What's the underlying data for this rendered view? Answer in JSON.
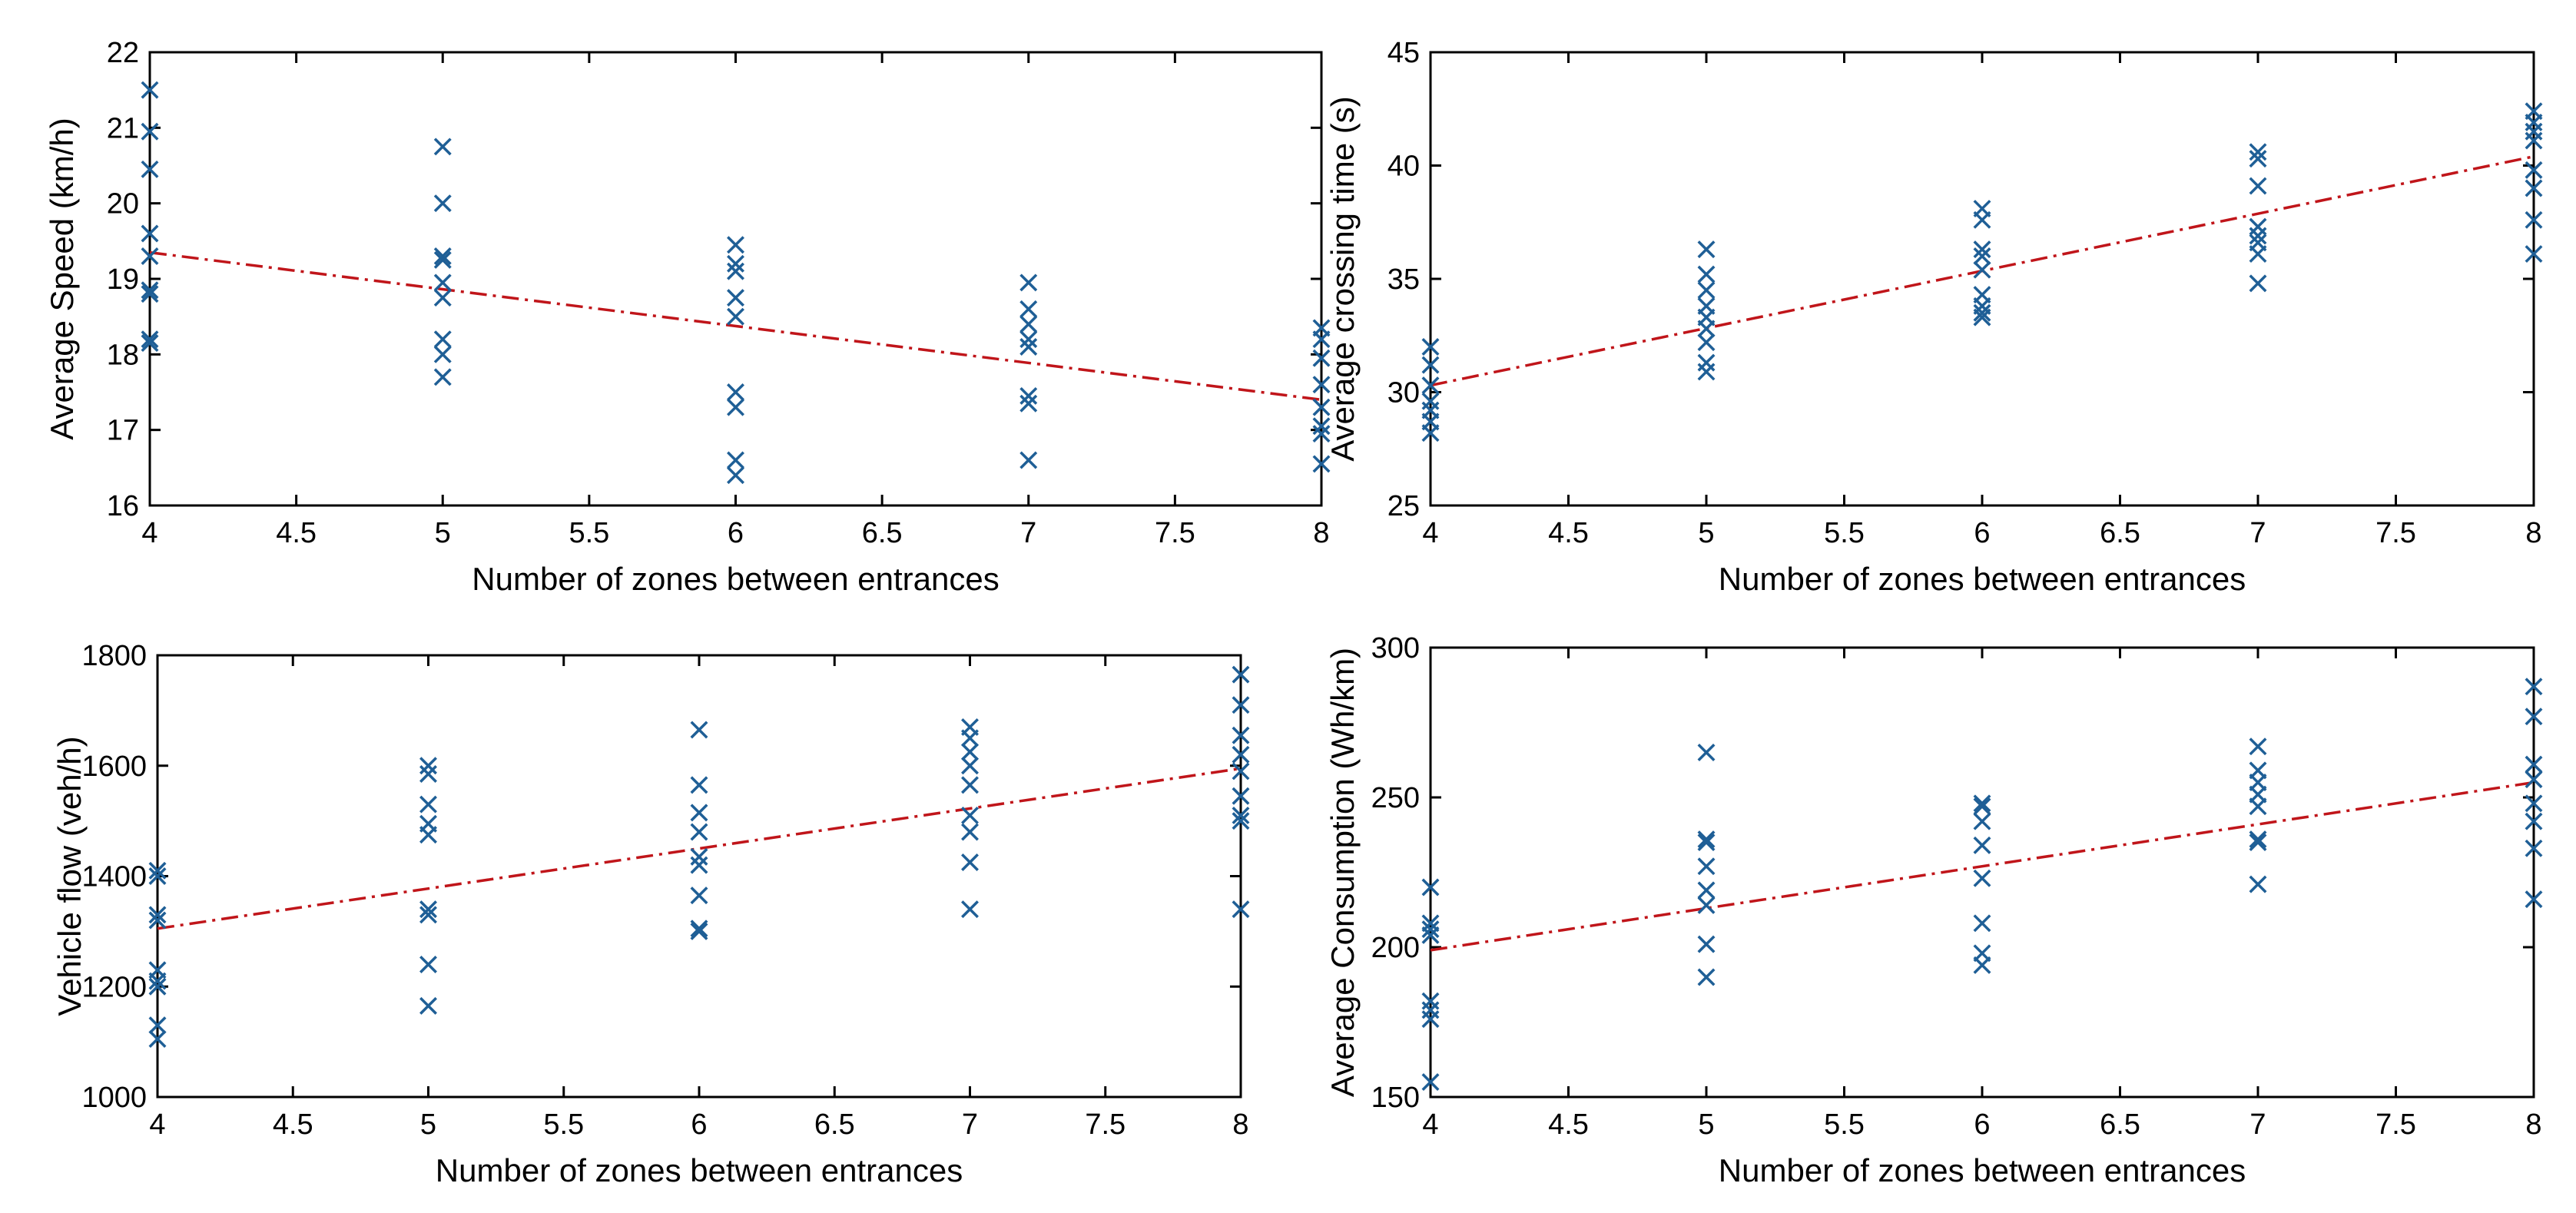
{
  "colors": {
    "marker": "#1f5f96",
    "trend": "#c0151a",
    "axis": "#000000",
    "background": "#ffffff"
  },
  "chart_data": [
    {
      "id": "speed",
      "type": "scatter",
      "title": "",
      "xlabel": "Number of zones between entrances",
      "ylabel": "Average Speed (km/h)",
      "xlim": [
        4,
        8
      ],
      "ylim": [
        16,
        22
      ],
      "x_ticks": [
        4,
        4.5,
        5,
        5.5,
        6,
        6.5,
        7,
        7.5,
        8
      ],
      "x_tick_labels": [
        "4",
        "4.5",
        "5",
        "5.5",
        "6",
        "6.5",
        "7",
        "7.5",
        "8"
      ],
      "y_ticks": [
        16,
        17,
        18,
        19,
        20,
        21,
        22
      ],
      "y_tick_labels": [
        "16",
        "17",
        "18",
        "19",
        "20",
        "21",
        "22"
      ],
      "points": [
        [
          4,
          21.5
        ],
        [
          4,
          20.95
        ],
        [
          4,
          20.45
        ],
        [
          4,
          19.6
        ],
        [
          4,
          19.3
        ],
        [
          4,
          18.85
        ],
        [
          4,
          18.8
        ],
        [
          4,
          18.2
        ],
        [
          4,
          18.15
        ],
        [
          5,
          20.75
        ],
        [
          5,
          20.0
        ],
        [
          5,
          19.3
        ],
        [
          5,
          19.25
        ],
        [
          5,
          18.95
        ],
        [
          5,
          18.75
        ],
        [
          5,
          18.2
        ],
        [
          5,
          18.0
        ],
        [
          5,
          17.7
        ],
        [
          6,
          19.45
        ],
        [
          6,
          19.2
        ],
        [
          6,
          19.1
        ],
        [
          6,
          18.75
        ],
        [
          6,
          18.5
        ],
        [
          6,
          17.5
        ],
        [
          6,
          17.3
        ],
        [
          6,
          16.6
        ],
        [
          6,
          16.4
        ],
        [
          7,
          18.95
        ],
        [
          7,
          18.6
        ],
        [
          7,
          18.4
        ],
        [
          7,
          18.2
        ],
        [
          7,
          18.1
        ],
        [
          7,
          17.45
        ],
        [
          7,
          17.35
        ],
        [
          7,
          16.6
        ],
        [
          8,
          18.35
        ],
        [
          8,
          18.2
        ],
        [
          8,
          17.95
        ],
        [
          8,
          17.6
        ],
        [
          8,
          17.3
        ],
        [
          8,
          17.05
        ],
        [
          8,
          16.95
        ],
        [
          8,
          16.55
        ]
      ],
      "trend": {
        "x": [
          4,
          8
        ],
        "y": [
          19.35,
          17.4
        ]
      }
    },
    {
      "id": "crossing",
      "type": "scatter",
      "title": "",
      "xlabel": "Number of zones between entrances",
      "ylabel": "Average crossing time (s)",
      "xlim": [
        4,
        8
      ],
      "ylim": [
        25,
        45
      ],
      "x_ticks": [
        4,
        4.5,
        5,
        5.5,
        6,
        6.5,
        7,
        7.5,
        8
      ],
      "x_tick_labels": [
        "4",
        "4.5",
        "5",
        "5.5",
        "6",
        "6.5",
        "7",
        "7.5",
        "8"
      ],
      "y_ticks": [
        25,
        30,
        35,
        40,
        45
      ],
      "y_tick_labels": [
        "25",
        "30",
        "35",
        "40",
        "45"
      ],
      "points": [
        [
          4,
          32.0
        ],
        [
          4,
          31.2
        ],
        [
          4,
          30.3
        ],
        [
          4,
          29.6
        ],
        [
          4,
          29.2
        ],
        [
          4,
          28.7
        ],
        [
          4,
          28.2
        ],
        [
          5,
          36.3
        ],
        [
          5,
          35.2
        ],
        [
          5,
          34.5
        ],
        [
          5,
          33.8
        ],
        [
          5,
          33.3
        ],
        [
          5,
          32.8
        ],
        [
          5,
          32.2
        ],
        [
          5,
          31.3
        ],
        [
          5,
          30.9
        ],
        [
          6,
          38.1
        ],
        [
          6,
          37.6
        ],
        [
          6,
          36.3
        ],
        [
          6,
          36.0
        ],
        [
          6,
          35.4
        ],
        [
          6,
          34.3
        ],
        [
          6,
          33.8
        ],
        [
          6,
          33.5
        ],
        [
          6,
          33.3
        ],
        [
          7,
          40.6
        ],
        [
          7,
          40.3
        ],
        [
          7,
          39.1
        ],
        [
          7,
          37.3
        ],
        [
          7,
          36.9
        ],
        [
          7,
          36.6
        ],
        [
          7,
          36.1
        ],
        [
          7,
          34.8
        ],
        [
          8,
          42.4
        ],
        [
          8,
          41.9
        ],
        [
          8,
          41.5
        ],
        [
          8,
          41.1
        ],
        [
          8,
          39.8
        ],
        [
          8,
          39.0
        ],
        [
          8,
          37.6
        ],
        [
          8,
          36.1
        ]
      ],
      "trend": {
        "x": [
          4,
          8
        ],
        "y": [
          30.3,
          40.4
        ]
      }
    },
    {
      "id": "flow",
      "type": "scatter",
      "title": "",
      "xlabel": "Number of zones between entrances",
      "ylabel": "Vehicle flow (veh/h)",
      "xlim": [
        4,
        8
      ],
      "ylim": [
        1000,
        1800
      ],
      "x_ticks": [
        4,
        4.5,
        5,
        5.5,
        6,
        6.5,
        7,
        7.5,
        8
      ],
      "x_tick_labels": [
        "4",
        "4.5",
        "5",
        "5.5",
        "6",
        "6.5",
        "7",
        "7.5",
        "8"
      ],
      "y_ticks": [
        1000,
        1200,
        1400,
        1600,
        1800
      ],
      "y_tick_labels": [
        "1000",
        "1200",
        "1400",
        "1600",
        "1800"
      ],
      "points": [
        [
          4,
          1410
        ],
        [
          4,
          1400
        ],
        [
          4,
          1330
        ],
        [
          4,
          1320
        ],
        [
          4,
          1230
        ],
        [
          4,
          1210
        ],
        [
          4,
          1200
        ],
        [
          4,
          1130
        ],
        [
          4,
          1105
        ],
        [
          5,
          1600
        ],
        [
          5,
          1585
        ],
        [
          5,
          1530
        ],
        [
          5,
          1495
        ],
        [
          5,
          1475
        ],
        [
          5,
          1340
        ],
        [
          5,
          1330
        ],
        [
          5,
          1240
        ],
        [
          5,
          1165
        ],
        [
          6,
          1665
        ],
        [
          6,
          1565
        ],
        [
          6,
          1515
        ],
        [
          6,
          1480
        ],
        [
          6,
          1435
        ],
        [
          6,
          1420
        ],
        [
          6,
          1365
        ],
        [
          6,
          1305
        ],
        [
          6,
          1300
        ],
        [
          7,
          1670
        ],
        [
          7,
          1650
        ],
        [
          7,
          1625
        ],
        [
          7,
          1600
        ],
        [
          7,
          1565
        ],
        [
          7,
          1510
        ],
        [
          7,
          1480
        ],
        [
          7,
          1425
        ],
        [
          7,
          1340
        ],
        [
          8,
          1765
        ],
        [
          8,
          1710
        ],
        [
          8,
          1655
        ],
        [
          8,
          1620
        ],
        [
          8,
          1590
        ],
        [
          8,
          1545
        ],
        [
          8,
          1510
        ],
        [
          8,
          1500
        ],
        [
          8,
          1340
        ]
      ],
      "trend": {
        "x": [
          4,
          8
        ],
        "y": [
          1305,
          1595
        ]
      }
    },
    {
      "id": "consumption",
      "type": "scatter",
      "title": "",
      "xlabel": "Number of zones between entrances",
      "ylabel": "Average Consumption (Wh/km)",
      "xlim": [
        4,
        8
      ],
      "ylim": [
        150,
        300
      ],
      "x_ticks": [
        4,
        4.5,
        5,
        5.5,
        6,
        6.5,
        7,
        7.5,
        8
      ],
      "x_tick_labels": [
        "4",
        "4.5",
        "5",
        "5.5",
        "6",
        "6.5",
        "7",
        "7.5",
        "8"
      ],
      "y_ticks": [
        150,
        200,
        250,
        300
      ],
      "y_tick_labels": [
        "150",
        "200",
        "250",
        "300"
      ],
      "points": [
        [
          4,
          220
        ],
        [
          4,
          208
        ],
        [
          4,
          206
        ],
        [
          4,
          204
        ],
        [
          4,
          182
        ],
        [
          4,
          179
        ],
        [
          4,
          176
        ],
        [
          4,
          155
        ],
        [
          5,
          265
        ],
        [
          5,
          236
        ],
        [
          5,
          235
        ],
        [
          5,
          227
        ],
        [
          5,
          219
        ],
        [
          5,
          214
        ],
        [
          5,
          201
        ],
        [
          5,
          190
        ],
        [
          6,
          248
        ],
        [
          6,
          247
        ],
        [
          6,
          242
        ],
        [
          6,
          234
        ],
        [
          6,
          223
        ],
        [
          6,
          208
        ],
        [
          6,
          198
        ],
        [
          6,
          194
        ],
        [
          7,
          267
        ],
        [
          7,
          259
        ],
        [
          7,
          255
        ],
        [
          7,
          251
        ],
        [
          7,
          247
        ],
        [
          7,
          236
        ],
        [
          7,
          235
        ],
        [
          7,
          221
        ],
        [
          8,
          287
        ],
        [
          8,
          277
        ],
        [
          8,
          261
        ],
        [
          8,
          256
        ],
        [
          8,
          248
        ],
        [
          8,
          242
        ],
        [
          8,
          233
        ],
        [
          8,
          216
        ]
      ],
      "trend": {
        "x": [
          4,
          8
        ],
        "y": [
          199,
          255
        ]
      }
    }
  ]
}
